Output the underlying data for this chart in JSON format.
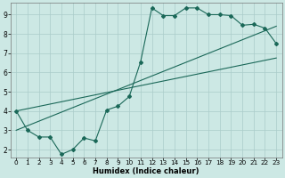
{
  "xlabel": "Humidex (Indice chaleur)",
  "bg_color": "#cce8e4",
  "grid_color": "#aaccca",
  "line_color": "#1a6858",
  "xlim": [
    -0.5,
    23.5
  ],
  "ylim": [
    1.6,
    9.6
  ],
  "xticks": [
    0,
    1,
    2,
    3,
    4,
    5,
    6,
    7,
    8,
    9,
    10,
    11,
    12,
    13,
    14,
    15,
    16,
    17,
    18,
    19,
    20,
    21,
    22,
    23
  ],
  "yticks": [
    2,
    3,
    4,
    5,
    6,
    7,
    8,
    9
  ],
  "line1_x": [
    0,
    1,
    2,
    3,
    4,
    5,
    6,
    7,
    8,
    9,
    10,
    11,
    12,
    13,
    14,
    15,
    16,
    17,
    18,
    19,
    20,
    21,
    22,
    23
  ],
  "line1_y": [
    4.0,
    3.0,
    2.65,
    2.65,
    1.75,
    2.0,
    2.6,
    2.45,
    4.05,
    4.25,
    4.75,
    6.55,
    9.35,
    8.95,
    8.95,
    9.35,
    9.35,
    9.0,
    9.0,
    8.95,
    8.45,
    8.5,
    8.3,
    7.5
  ],
  "line2_x": [
    0,
    23
  ],
  "line2_y": [
    4.0,
    6.75
  ],
  "line3_x": [
    0,
    23
  ],
  "line3_y": [
    3.0,
    8.4
  ]
}
